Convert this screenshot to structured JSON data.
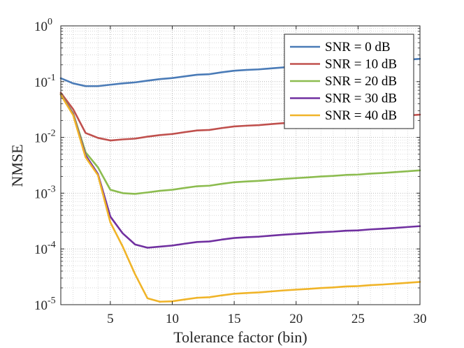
{
  "chart_data": {
    "type": "line",
    "title": "",
    "xlabel": "Tolerance factor (bin)",
    "ylabel": "NMSE",
    "xlim": [
      1,
      30
    ],
    "ylim": [
      1e-05,
      1
    ],
    "yscale": "log",
    "grid": true,
    "legend_position": "top-right",
    "x_ticks": [
      5,
      10,
      15,
      20,
      25,
      30
    ],
    "x_tick_labels": [
      "5",
      "10",
      "15",
      "20",
      "25",
      "30"
    ],
    "y_ticks": [
      -5,
      -4,
      -3,
      -2,
      -1,
      0
    ],
    "y_tick_labels": [
      {
        "base": "10",
        "exp": "-5"
      },
      {
        "base": "10",
        "exp": "-4"
      },
      {
        "base": "10",
        "exp": "-3"
      },
      {
        "base": "10",
        "exp": "-2"
      },
      {
        "base": "10",
        "exp": "-1"
      },
      {
        "base": "10",
        "exp": "0"
      }
    ],
    "x": [
      1,
      2,
      3,
      4,
      5,
      6,
      7,
      8,
      9,
      10,
      11,
      12,
      13,
      14,
      15,
      16,
      17,
      18,
      19,
      20,
      21,
      22,
      23,
      24,
      25,
      26,
      27,
      28,
      29,
      30
    ],
    "series": [
      {
        "name": "SNR = 0 dB",
        "color": "#4a7bb7",
        "values": [
          0.115,
          0.093,
          0.083,
          0.083,
          0.088,
          0.093,
          0.097,
          0.104,
          0.111,
          0.116,
          0.124,
          0.133,
          0.136,
          0.147,
          0.157,
          0.162,
          0.166,
          0.173,
          0.18,
          0.186,
          0.192,
          0.199,
          0.204,
          0.212,
          0.215,
          0.224,
          0.23,
          0.238,
          0.247,
          0.256
        ]
      },
      {
        "name": "SNR = 10 dB",
        "color": "#c0504d",
        "values": [
          0.063,
          0.032,
          0.012,
          0.0098,
          0.0088,
          0.0092,
          0.0095,
          0.0103,
          0.011,
          0.0115,
          0.0124,
          0.0133,
          0.0136,
          0.0147,
          0.0157,
          0.0162,
          0.0166,
          0.0173,
          0.018,
          0.0186,
          0.0192,
          0.0199,
          0.0204,
          0.0212,
          0.0215,
          0.0224,
          0.023,
          0.0238,
          0.0247,
          0.0256
        ]
      },
      {
        "name": "SNR = 20 dB",
        "color": "#8cbc4f",
        "values": [
          0.06,
          0.027,
          0.0054,
          0.0029,
          0.00115,
          0.001,
          0.00097,
          0.00103,
          0.0011,
          0.00115,
          0.00124,
          0.00133,
          0.00136,
          0.00147,
          0.00157,
          0.00162,
          0.00166,
          0.00173,
          0.0018,
          0.00186,
          0.00192,
          0.00199,
          0.00204,
          0.00212,
          0.00215,
          0.00224,
          0.0023,
          0.00238,
          0.00247,
          0.00256
        ]
      },
      {
        "name": "SNR = 30 dB",
        "color": "#7030a0",
        "values": [
          0.059,
          0.026,
          0.0048,
          0.0022,
          0.00038,
          0.00019,
          0.00012,
          0.000105,
          0.00011,
          0.000115,
          0.000124,
          0.000133,
          0.000136,
          0.000147,
          0.000157,
          0.000162,
          0.000166,
          0.000173,
          0.00018,
          0.000186,
          0.000192,
          0.000199,
          0.000204,
          0.000212,
          0.000215,
          0.000224,
          0.00023,
          0.000238,
          0.000247,
          0.000256
        ]
      },
      {
        "name": "SNR = 40 dB",
        "color": "#f0b428",
        "values": [
          0.058,
          0.025,
          0.0044,
          0.0021,
          0.0003,
          0.00011,
          3.5e-05,
          1.3e-05,
          1.13e-05,
          1.15e-05,
          1.24e-05,
          1.33e-05,
          1.36e-05,
          1.47e-05,
          1.57e-05,
          1.62e-05,
          1.66e-05,
          1.73e-05,
          1.8e-05,
          1.86e-05,
          1.92e-05,
          1.99e-05,
          2.04e-05,
          2.12e-05,
          2.15e-05,
          2.24e-05,
          2.3e-05,
          2.38e-05,
          2.47e-05,
          2.56e-05
        ]
      }
    ]
  }
}
